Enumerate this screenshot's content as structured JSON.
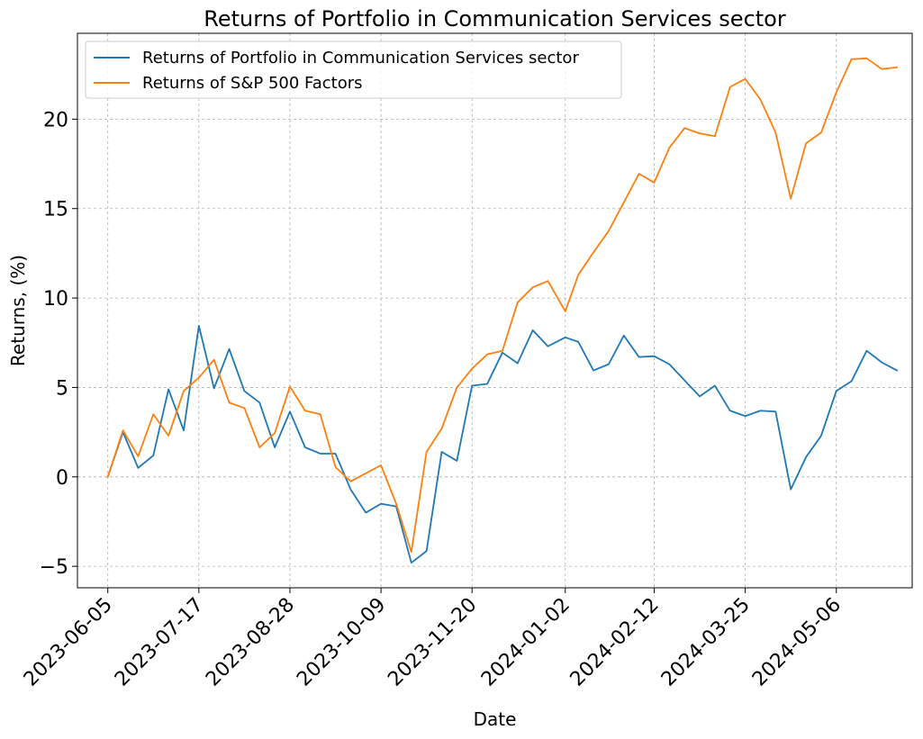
{
  "chart_data": {
    "type": "line",
    "title": "Returns of Portfolio in Communication Services sector",
    "xlabel": "Date",
    "ylabel": "Returns, (%)",
    "xlim": [
      "2023-05-22",
      "2024-06-10"
    ],
    "ylim": [
      -6.2,
      24.8
    ],
    "grid": true,
    "legend_position": "top-left",
    "x_ticks": [
      "2023-06-05",
      "2023-07-17",
      "2023-08-28",
      "2023-10-09",
      "2023-11-20",
      "2024-01-02",
      "2024-02-12",
      "2024-03-25",
      "2024-05-06"
    ],
    "y_ticks": [
      -5,
      0,
      5,
      10,
      15,
      20
    ],
    "x": [
      "2023-06-05",
      "2023-06-12",
      "2023-06-19",
      "2023-06-26",
      "2023-07-03",
      "2023-07-10",
      "2023-07-17",
      "2023-07-24",
      "2023-07-31",
      "2023-08-07",
      "2023-08-14",
      "2023-08-21",
      "2023-08-28",
      "2023-09-04",
      "2023-09-11",
      "2023-09-18",
      "2023-09-25",
      "2023-10-02",
      "2023-10-09",
      "2023-10-16",
      "2023-10-23",
      "2023-10-30",
      "2023-11-06",
      "2023-11-13",
      "2023-11-20",
      "2023-11-27",
      "2023-12-04",
      "2023-12-11",
      "2023-12-18",
      "2023-12-25",
      "2024-01-02",
      "2024-01-08",
      "2024-01-15",
      "2024-01-22",
      "2024-01-29",
      "2024-02-05",
      "2024-02-12",
      "2024-02-19",
      "2024-02-26",
      "2024-03-04",
      "2024-03-11",
      "2024-03-18",
      "2024-03-25",
      "2024-04-01",
      "2024-04-08",
      "2024-04-15",
      "2024-04-22",
      "2024-04-29",
      "2024-05-06",
      "2024-05-13",
      "2024-05-20",
      "2024-05-27",
      "2024-06-03"
    ],
    "series": [
      {
        "name": "Returns of Portfolio in Communication Services sector",
        "color": "#1f77b4",
        "values": [
          0.0,
          2.5,
          0.5,
          1.2,
          4.9,
          2.6,
          8.45,
          4.95,
          7.15,
          4.8,
          4.15,
          1.65,
          3.65,
          1.65,
          1.3,
          1.3,
          -0.7,
          -2.0,
          -1.5,
          -1.65,
          -4.8,
          -4.15,
          1.4,
          0.9,
          5.1,
          5.2,
          6.95,
          6.35,
          8.2,
          7.3,
          7.8,
          7.55,
          5.95,
          6.3,
          7.9,
          6.7,
          6.75,
          6.3,
          5.4,
          4.5,
          5.1,
          3.7,
          3.4,
          3.7,
          3.65,
          -0.7,
          1.1,
          2.3,
          4.8,
          5.35,
          7.05,
          6.4,
          5.95
        ]
      },
      {
        "name": "Returns of S&P 500 Factors",
        "color": "#ff7f0e",
        "values": [
          0.0,
          2.6,
          1.15,
          3.5,
          2.3,
          4.8,
          5.55,
          6.55,
          4.15,
          3.85,
          1.65,
          2.45,
          5.05,
          3.7,
          3.5,
          0.55,
          -0.25,
          0.2,
          0.65,
          -1.5,
          -4.2,
          1.4,
          2.7,
          5.0,
          6.05,
          6.85,
          7.05,
          9.75,
          10.6,
          10.95,
          9.25,
          11.3,
          12.55,
          13.75,
          15.35,
          16.95,
          16.45,
          18.4,
          19.5,
          19.2,
          19.05,
          21.8,
          22.25,
          21.1,
          19.25,
          15.55,
          18.65,
          19.25,
          21.5,
          23.35,
          23.4,
          22.8,
          22.9
        ]
      }
    ]
  }
}
